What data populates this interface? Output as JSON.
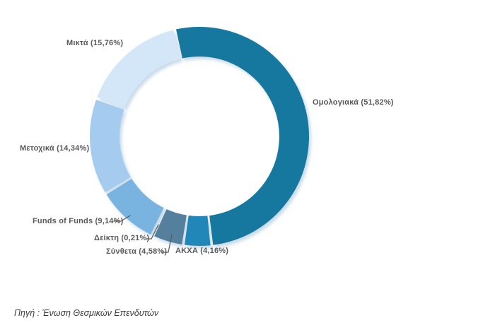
{
  "chart_data": {
    "type": "pie",
    "donut": true,
    "title": "",
    "unit": "%",
    "rotation_deg": -13,
    "legend_position": "none",
    "label_color": "#58595b",
    "slices": [
      {
        "id": "omologiaka",
        "name": "Ομολογιακά",
        "value": 51.82,
        "label": "Ομολογιακά (51,82%)",
        "color": "#16789f"
      },
      {
        "id": "akxa",
        "name": "ΑΚΧΑ",
        "value": 4.16,
        "label": "ΑΚΧΑ (4,16%)",
        "color": "#2186b8"
      },
      {
        "id": "syntheta",
        "name": "Σύνθετα",
        "value": 4.58,
        "label": "Σύνθετα (4,58%)",
        "color": "#54809d"
      },
      {
        "id": "deikti",
        "name": "Δείκτη",
        "value": 0.21,
        "label": "Δείκτη (0,21%)",
        "color": "#c2d9ea"
      },
      {
        "id": "funds-of-funds",
        "name": "Funds of Funds",
        "value": 9.14,
        "label": "Funds of Funds (9,14%)",
        "color": "#79b3e0"
      },
      {
        "id": "metoxika",
        "name": "Μετοχικά",
        "value": 14.34,
        "label": "Μετοχικά (14,34%)",
        "color": "#a5ccee"
      },
      {
        "id": "mikta",
        "name": "Μικτά",
        "value": 15.76,
        "label": "Μικτά (15,76%)",
        "color": "#d3e7f8"
      }
    ]
  },
  "source_note": "Πηγή : Ένωση Θεσμικών Επενδυτών"
}
